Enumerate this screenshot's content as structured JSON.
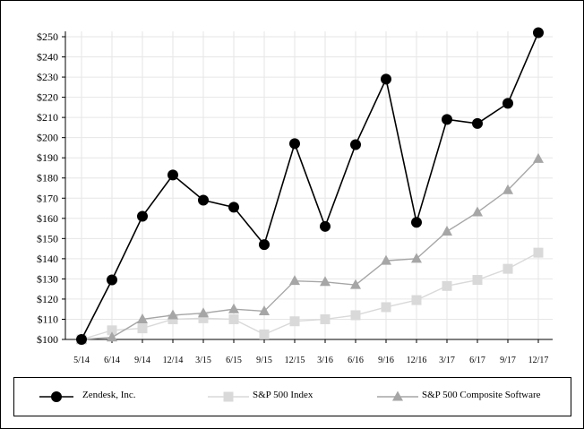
{
  "chart_data": {
    "type": "line",
    "categories": [
      "5/14",
      "6/14",
      "9/14",
      "12/14",
      "3/15",
      "6/15",
      "9/15",
      "12/15",
      "3/16",
      "6/16",
      "9/16",
      "12/16",
      "3/17",
      "6/17",
      "9/17",
      "12/17"
    ],
    "y_tick_labels": [
      "$100",
      "$110",
      "$120",
      "$130",
      "$140",
      "$150",
      "$160",
      "$170",
      "$180",
      "$190",
      "$200",
      "$210",
      "$220",
      "$230",
      "$240",
      "$250"
    ],
    "ylim": [
      100,
      250
    ],
    "grid": true,
    "legend_position": "bottom",
    "series": [
      {
        "name": "Zendesk, Inc.",
        "color": "#000000",
        "marker": "circle",
        "values": [
          100,
          129.5,
          161,
          181.5,
          169,
          165.5,
          147,
          197,
          156,
          196.5,
          229,
          158,
          209,
          207,
          217,
          252
        ]
      },
      {
        "name": "S&P 500 Index",
        "color": "#d9d9d9",
        "marker": "square",
        "values": [
          100,
          104.5,
          105.5,
          110,
          110.5,
          110,
          102.5,
          109,
          110,
          112,
          116,
          119.5,
          126.5,
          129.5,
          135,
          143
        ]
      },
      {
        "name": "S&P 500 Composite Software",
        "color": "#a6a6a6",
        "marker": "triangle",
        "values": [
          100,
          101,
          110,
          112,
          113,
          115,
          114,
          129,
          128.5,
          127,
          139,
          140,
          153.5,
          163,
          174,
          189.5
        ]
      }
    ]
  }
}
